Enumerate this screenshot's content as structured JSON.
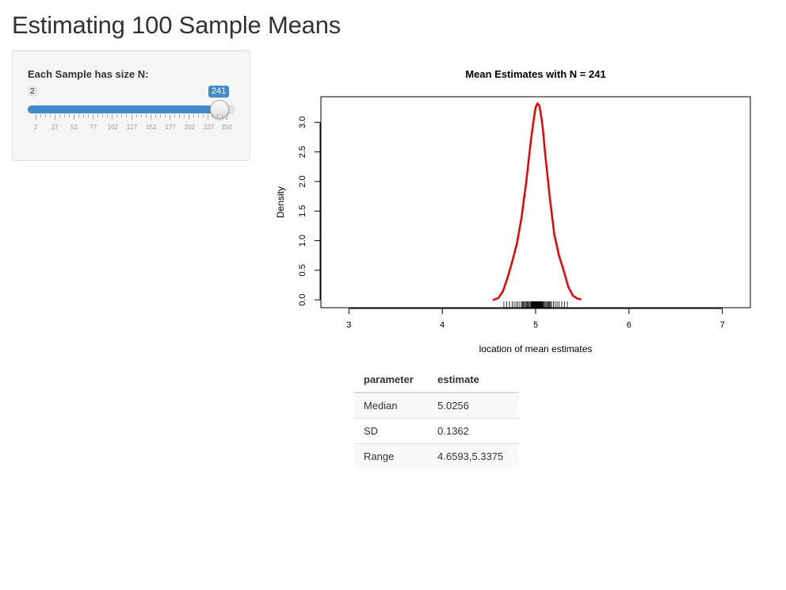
{
  "page": {
    "title": "Estimating 100 Sample Means"
  },
  "slider": {
    "label": "Each Sample has size N:",
    "min_label": "2",
    "value_label": "241",
    "min": 2,
    "max": 250,
    "value": 241,
    "grid_labels": [
      "2",
      "27",
      "52",
      "77",
      "102",
      "127",
      "152",
      "177",
      "202",
      "227",
      "250"
    ]
  },
  "chart_data": {
    "type": "line",
    "title": "Mean Estimates with N = 241",
    "xlabel": "location of mean estimates",
    "ylabel": "Density",
    "xlim": [
      3,
      7
    ],
    "ylim": [
      0,
      3.3
    ],
    "x_ticks": [
      "3",
      "4",
      "5",
      "6",
      "7"
    ],
    "y_ticks": [
      "0.0",
      "0.5",
      "1.0",
      "1.5",
      "2.0",
      "2.5",
      "3.0"
    ],
    "series": [
      {
        "color": "#ee0000",
        "x": [
          4.55,
          4.6,
          4.65,
          4.7,
          4.75,
          4.8,
          4.85,
          4.9,
          4.95,
          4.98,
          5.0,
          5.02,
          5.04,
          5.06,
          5.08,
          5.1,
          5.15,
          5.2,
          5.25,
          5.3,
          5.35,
          5.4,
          5.45,
          5.48
        ],
        "y": [
          0.0,
          0.03,
          0.15,
          0.38,
          0.65,
          0.95,
          1.4,
          2.0,
          2.7,
          3.05,
          3.25,
          3.32,
          3.28,
          3.1,
          2.85,
          2.5,
          1.75,
          1.1,
          0.75,
          0.5,
          0.22,
          0.07,
          0.02,
          0.01
        ]
      }
    ],
    "rug": [
      4.66,
      4.69,
      4.72,
      4.75,
      4.77,
      4.79,
      4.81,
      4.83,
      4.85,
      4.86,
      4.87,
      4.88,
      4.89,
      4.9,
      4.91,
      4.92,
      4.93,
      4.94,
      4.95,
      4.955,
      4.96,
      4.965,
      4.97,
      4.975,
      4.98,
      4.985,
      4.99,
      4.995,
      5.0,
      5.005,
      5.01,
      5.015,
      5.02,
      5.025,
      5.03,
      5.035,
      5.04,
      5.045,
      5.05,
      5.055,
      5.06,
      5.065,
      5.07,
      5.075,
      5.08,
      5.09,
      5.1,
      5.11,
      5.12,
      5.13,
      5.14,
      5.15,
      5.16,
      5.17,
      5.19,
      5.21,
      5.23,
      5.25,
      5.28,
      5.31,
      5.34
    ]
  },
  "table": {
    "headers": [
      "parameter",
      "estimate"
    ],
    "rows": [
      [
        "Median",
        "5.0256"
      ],
      [
        "SD",
        "0.1362"
      ],
      [
        "Range",
        "4.6593,5.3375"
      ]
    ]
  }
}
